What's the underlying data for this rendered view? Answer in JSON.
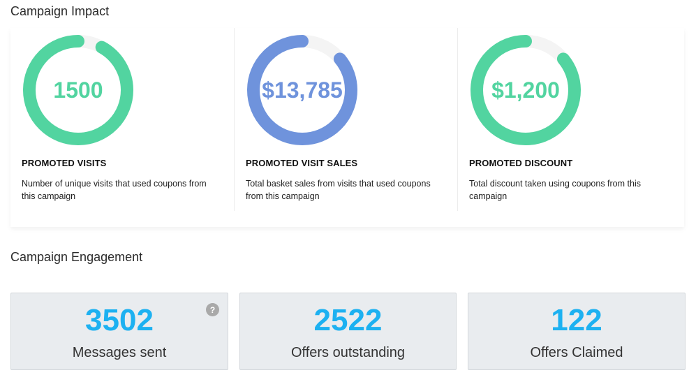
{
  "impact": {
    "title": "Campaign Impact",
    "metrics": [
      {
        "value": "1500",
        "title": "PROMOTED VISITS",
        "description": "Number of unique visits that used coupons from this campaign",
        "color": "#52d4a0",
        "fill_fraction": 0.92
      },
      {
        "value": "$13,785",
        "title": "PROMOTED VISIT SALES",
        "description": "Total basket sales from visits that used coupons from this campaign",
        "color": "#6f93dc",
        "fill_fraction": 0.86
      },
      {
        "value": "$1,200",
        "title": "PROMOTED DISCOUNT",
        "description": "Total discount taken using coupons from this campaign",
        "color": "#52d4a0",
        "fill_fraction": 0.86
      }
    ],
    "track_color": "#f4f4f4"
  },
  "engagement": {
    "title": "Campaign Engagement",
    "cards": [
      {
        "value": "3502",
        "label": "Messages sent",
        "help_icon": "?"
      },
      {
        "value": "2522",
        "label": "Offers outstanding"
      },
      {
        "value": "122",
        "label": "Offers Claimed"
      }
    ],
    "value_color": "#1db1f1"
  }
}
